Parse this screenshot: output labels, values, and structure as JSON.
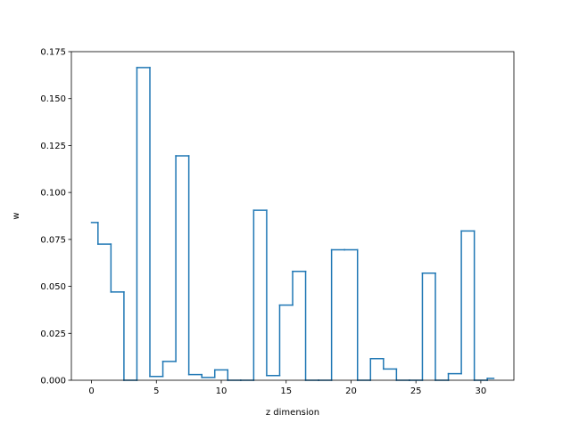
{
  "chart_data": {
    "type": "line",
    "drawstyle": "steps-mid",
    "title": "",
    "xlabel": "z dimension",
    "ylabel": "w",
    "xlim": [
      -1.55,
      32.55
    ],
    "ylim": [
      0,
      0.175
    ],
    "xticks": [
      0,
      5,
      10,
      15,
      20,
      25,
      30
    ],
    "xtick_labels": [
      "0",
      "5",
      "10",
      "15",
      "20",
      "25",
      "30"
    ],
    "yticks": [
      0,
      0.025,
      0.05,
      0.075,
      0.1,
      0.125,
      0.15,
      0.175
    ],
    "ytick_labels": [
      "0.000",
      "0.025",
      "0.050",
      "0.075",
      "0.100",
      "0.125",
      "0.150",
      "0.175"
    ],
    "grid": false,
    "line_color": "#1f77b4",
    "x": [
      0,
      1,
      2,
      3,
      4,
      5,
      6,
      7,
      8,
      9,
      10,
      11,
      12,
      13,
      14,
      15,
      16,
      17,
      18,
      19,
      20,
      21,
      22,
      23,
      24,
      25,
      26,
      27,
      28,
      29,
      30,
      31
    ],
    "y": [
      0.084,
      0.0725,
      0.047,
      0.0,
      0.1665,
      0.002,
      0.01,
      0.1195,
      0.003,
      0.0015,
      0.0055,
      0.0,
      0.0,
      0.0905,
      0.0025,
      0.04,
      0.058,
      0.0,
      0.0,
      0.0695,
      0.0695,
      0.0,
      0.0115,
      0.006,
      0.0,
      0.0,
      0.057,
      0.0,
      0.0035,
      0.0795,
      0.0,
      0.001
    ]
  }
}
